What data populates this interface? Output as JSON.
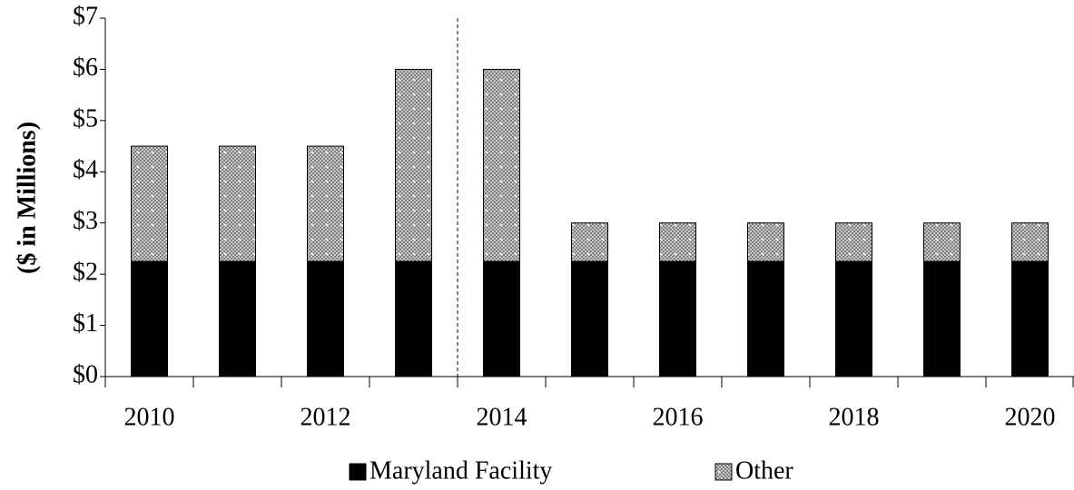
{
  "chart_data": {
    "type": "stacked-bar",
    "ylabel": "($ in Millions)",
    "categories": [
      "2010",
      null,
      "2012",
      null,
      "2014",
      null,
      "2016",
      null,
      "2018",
      null,
      "2020"
    ],
    "series": [
      {
        "name": "Maryland Facility",
        "color": "#000000",
        "values": [
          2.25,
          2.25,
          2.25,
          2.25,
          2.25,
          2.25,
          2.25,
          2.25,
          2.25,
          2.25,
          2.25
        ]
      },
      {
        "name": "Other",
        "color": "#7f7f7f",
        "values": [
          2.25,
          2.25,
          2.25,
          3.75,
          3.75,
          0.75,
          0.75,
          0.75,
          0.75,
          0.75,
          0.75
        ]
      }
    ],
    "ylim": [
      0,
      7
    ],
    "yticks": [
      {
        "value": 0,
        "label": "$0"
      },
      {
        "value": 1,
        "label": "$1"
      },
      {
        "value": 2,
        "label": "$2"
      },
      {
        "value": 3,
        "label": "$3"
      },
      {
        "value": 4,
        "label": "$4"
      },
      {
        "value": 5,
        "label": "$5"
      },
      {
        "value": 6,
        "label": "$6"
      },
      {
        "value": 7,
        "label": "$7"
      }
    ],
    "grid": false
  }
}
